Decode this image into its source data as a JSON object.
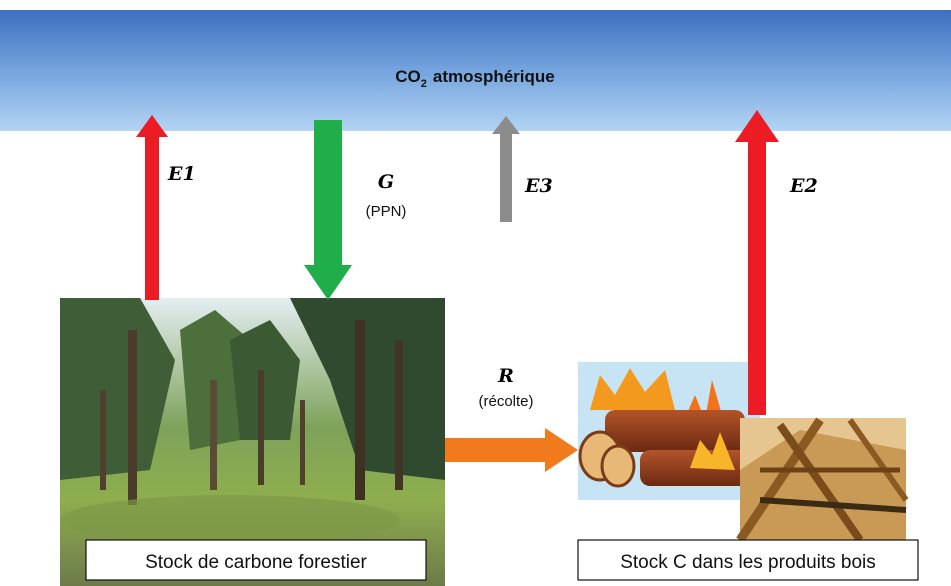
{
  "atmosphere": {
    "label": "CO",
    "subscript": "2",
    "suffix": "atmosphérique"
  },
  "flows": [
    {
      "symbol": "E1"
    },
    {
      "symbol": "G",
      "note": "(PPN)"
    },
    {
      "symbol": "E3"
    },
    {
      "symbol": "E2"
    },
    {
      "symbol": "R",
      "note": "(récolte)"
    }
  ],
  "stocks": [
    {
      "label": "Stock de carbone forestier"
    },
    {
      "label": "Stock C dans les produits bois"
    }
  ]
}
